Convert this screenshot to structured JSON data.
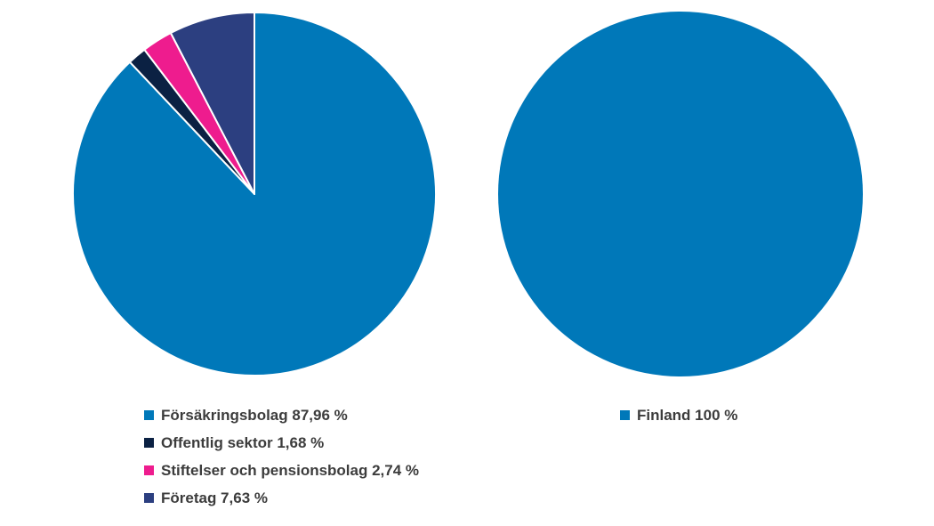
{
  "chart_data": [
    {
      "type": "pie",
      "title": "",
      "slices": [
        {
          "label": "Försäkringsbolag 87,96 %",
          "value": 87.96,
          "color": "#0078b9"
        },
        {
          "label": "Offentlig sektor 1,68 %",
          "value": 1.68,
          "color": "#0b2143"
        },
        {
          "label": "Stiftelser och pensionsbolag 2,74 %",
          "value": 2.74,
          "color": "#ee1c8e"
        },
        {
          "label": "Företag 7,63 %",
          "value": 7.63,
          "color": "#2c3f80"
        }
      ],
      "legend": "bottom"
    },
    {
      "type": "pie",
      "title": "",
      "slices": [
        {
          "label": "Finland 100 %",
          "value": 100,
          "color": "#0078b9"
        }
      ],
      "legend": "bottom"
    }
  ]
}
